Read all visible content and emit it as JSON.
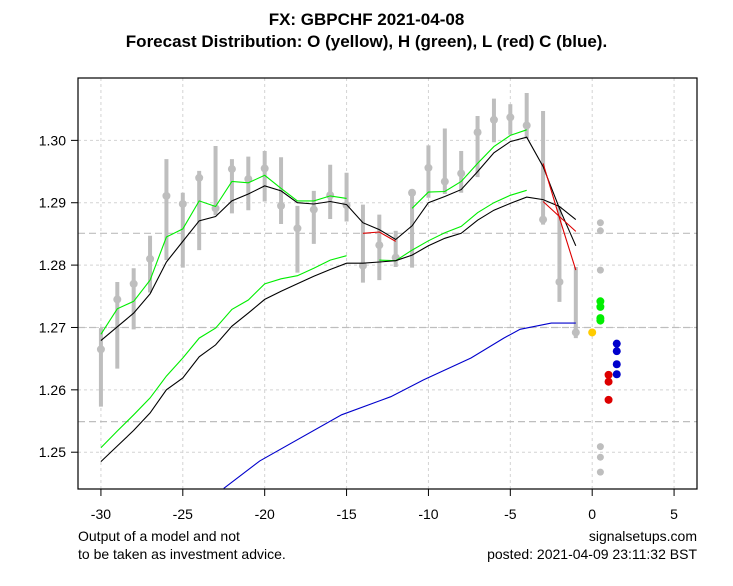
{
  "chart_data": {
    "type": "line",
    "title": "FX: GBPCHF 2021-04-08",
    "subtitle": "Forecast Distribution: O (yellow), H (green), L (red) C (blue).",
    "xlabel": "",
    "ylabel": "",
    "xlim": [
      -31.4,
      6.4
    ],
    "ylim": [
      1.2441,
      1.31
    ],
    "x_ticks": [
      -30,
      -25,
      -20,
      -15,
      -10,
      -5,
      0,
      5
    ],
    "x_tick_labels": [
      "-30",
      "-25",
      "-20",
      "-15",
      "-10",
      "-5",
      "0",
      "5"
    ],
    "y_ticks": [
      1.25,
      1.26,
      1.27,
      1.28,
      1.29,
      1.3
    ],
    "y_tick_labels": [
      "1.25",
      "1.26",
      "1.27",
      "1.28",
      "1.29",
      "1.30"
    ],
    "grid": true,
    "reference_lines_dashed": [
      1.2851,
      1.27,
      1.2549
    ],
    "colors": {
      "bars": "#bebebe",
      "upper_black": "#000000",
      "green": "#00ee00",
      "red": "#dd0000",
      "blue": "#0000cc",
      "yellow": "#ffcc00",
      "grid": "#d3d3d3",
      "refline": "#bebebe"
    },
    "bars": {
      "x": [
        -30,
        -29,
        -28,
        -27,
        -26,
        -25,
        -24,
        -23,
        -22,
        -21,
        -20,
        -19,
        -18,
        -17,
        -16,
        -15,
        -14,
        -13,
        -12,
        -11,
        -10,
        -9,
        -8,
        -7,
        -6,
        -5,
        -4,
        -3,
        -2,
        -1
      ],
      "high": [
        1.2699,
        1.2773,
        1.2795,
        1.2847,
        1.297,
        1.2916,
        1.2951,
        1.2991,
        1.297,
        1.2974,
        1.2983,
        1.2973,
        1.2895,
        1.2919,
        1.2961,
        1.2948,
        1.2897,
        1.2881,
        1.2855,
        1.2916,
        1.2992,
        1.3019,
        1.2983,
        1.3039,
        1.3067,
        1.3058,
        1.3076,
        1.3047,
        1.2894,
        1.2797
      ],
      "low": [
        1.2573,
        1.2634,
        1.2697,
        1.2756,
        1.2808,
        1.2796,
        1.2824,
        1.288,
        1.2883,
        1.2888,
        1.2902,
        1.2866,
        1.2788,
        1.2834,
        1.2874,
        1.287,
        1.2772,
        1.2776,
        1.2797,
        1.2796,
        1.2908,
        1.2914,
        1.2916,
        1.2941,
        1.2997,
        1.3009,
        1.3003,
        1.2865,
        1.2741,
        1.2683
      ],
      "close": [
        1.2665,
        1.2745,
        1.277,
        1.281,
        1.2911,
        1.2898,
        1.294,
        1.2891,
        1.2954,
        1.2938,
        1.2955,
        1.2895,
        1.2859,
        1.2889,
        1.2912,
        1.2896,
        1.2799,
        1.2832,
        1.2812,
        1.2916,
        1.2956,
        1.2934,
        1.2947,
        1.3013,
        1.3033,
        1.3037,
        1.3024,
        1.2873,
        1.2773,
        1.2692
      ]
    },
    "series": [
      {
        "name": "upper-green",
        "color": "green",
        "x": [
          -30,
          -29,
          -28,
          -27,
          -26,
          -25,
          -24,
          -23,
          -22,
          -21,
          -20,
          -19,
          -18,
          -17,
          -16,
          -15
        ],
        "values": [
          1.2689,
          1.273,
          1.2742,
          1.2776,
          1.2845,
          1.2858,
          1.2903,
          1.2894,
          1.2934,
          1.2932,
          1.2944,
          1.2923,
          1.2903,
          1.2903,
          1.2911,
          1.2907
        ]
      },
      {
        "name": "upper-green-2",
        "color": "green",
        "x": [
          -11,
          -10,
          -9,
          -8,
          -7,
          -6,
          -5,
          -4
        ],
        "values": [
          1.2891,
          1.2917,
          1.2918,
          1.2934,
          1.2963,
          1.299,
          1.3008,
          1.3017
        ]
      },
      {
        "name": "upper-black",
        "color": "upper_black",
        "x": [
          -30,
          -29,
          -28,
          -27,
          -26,
          -25,
          -24,
          -23,
          -22,
          -21,
          -20,
          -19,
          -18,
          -17,
          -16,
          -15,
          -14,
          -13,
          -12,
          -11,
          -10,
          -9,
          -8,
          -7,
          -6,
          -5,
          -4,
          -3,
          -2,
          -1
        ],
        "values": [
          1.2679,
          1.2701,
          1.2723,
          1.2754,
          1.2805,
          1.2838,
          1.2871,
          1.2878,
          1.2903,
          1.2914,
          1.2927,
          1.2919,
          1.29,
          1.2898,
          1.2902,
          1.2897,
          1.2868,
          1.2857,
          1.2841,
          1.2863,
          1.29,
          1.291,
          1.2921,
          1.295,
          1.298,
          1.2998,
          1.3005,
          1.2958,
          1.2891,
          1.2831
        ]
      },
      {
        "name": "lower-green",
        "color": "green",
        "x": [
          -30,
          -29,
          -28,
          -27,
          -26,
          -25,
          -24,
          -23,
          -22,
          -21,
          -20,
          -19,
          -18,
          -17,
          -16,
          -15
        ],
        "values": [
          1.2507,
          1.2534,
          1.256,
          1.2587,
          1.2622,
          1.2651,
          1.2683,
          1.2699,
          1.2729,
          1.2744,
          1.277,
          1.2778,
          1.2783,
          1.2795,
          1.2808,
          1.2815
        ]
      },
      {
        "name": "lower-green-2",
        "color": "green",
        "x": [
          -13,
          -12,
          -11,
          -10,
          -9,
          -8,
          -7,
          -6,
          -5,
          -4
        ],
        "values": [
          1.2808,
          1.2807,
          1.2824,
          1.2839,
          1.2852,
          1.2862,
          1.2884,
          1.29,
          1.2912,
          1.292
        ]
      },
      {
        "name": "lower-black",
        "color": "upper_black",
        "x": [
          -30,
          -29,
          -28,
          -27,
          -26,
          -25,
          -24,
          -23,
          -22,
          -21,
          -20,
          -19,
          -18,
          -17,
          -16,
          -15,
          -14,
          -13,
          -12,
          -11,
          -10,
          -9,
          -8,
          -7,
          -6,
          -5,
          -4,
          -3,
          -2,
          -1
        ],
        "values": [
          1.2485,
          1.251,
          1.2535,
          1.2563,
          1.26,
          1.2619,
          1.2653,
          1.2672,
          1.2702,
          1.2723,
          1.2745,
          1.2758,
          1.277,
          1.2782,
          1.2793,
          1.2803,
          1.2803,
          1.2805,
          1.2807,
          1.2816,
          1.2831,
          1.2843,
          1.2851,
          1.2872,
          1.2888,
          1.2899,
          1.2909,
          1.2905,
          1.2894,
          1.2873
        ]
      },
      {
        "name": "red-segment-1",
        "color": "red",
        "x": [
          -14,
          -13,
          -12
        ],
        "values": [
          1.2851,
          1.2853,
          1.2838
        ]
      },
      {
        "name": "red-segment-2",
        "color": "red",
        "x": [
          -3,
          -2,
          -1
        ],
        "values": [
          1.2963,
          1.2876,
          1.2792
        ]
      },
      {
        "name": "red-segment-3",
        "color": "red",
        "x": [
          -3,
          -2,
          -1
        ],
        "values": [
          1.2902,
          1.2878,
          1.2854
        ]
      },
      {
        "name": "blue",
        "color": "blue",
        "x": [
          -22.5,
          -20.3,
          -15.3,
          -12.3,
          -10.3,
          -7.4,
          -5.4,
          -4.4,
          -2.5,
          -1
        ],
        "values": [
          1.2442,
          1.2486,
          1.256,
          1.2589,
          1.2616,
          1.2651,
          1.2683,
          1.2697,
          1.2707,
          1.2707
        ]
      }
    ],
    "forecast_points": {
      "open_yellow": {
        "x": 0.0,
        "values": [
          1.2692
        ]
      },
      "high_green": {
        "x": 0.5,
        "values": [
          1.2742,
          1.2733,
          1.2715,
          1.2711
        ]
      },
      "low_red": {
        "x": 1.0,
        "values": [
          1.2624,
          1.2613,
          1.2584
        ]
      },
      "close_blue": {
        "x": 1.5,
        "values": [
          1.2674,
          1.2662,
          1.2641,
          1.2625
        ]
      },
      "gray": {
        "x": 0.5,
        "values": [
          1.2868,
          1.2855,
          1.2792,
          1.2509,
          1.2492,
          1.2468
        ]
      }
    }
  },
  "footer": {
    "left_line1": "Output of a model and not",
    "left_line2": "to be taken as investment advice.",
    "right_line1": "signalsetups.com",
    "right_line2": "posted: 2021-04-09 23:11:32 BST"
  }
}
